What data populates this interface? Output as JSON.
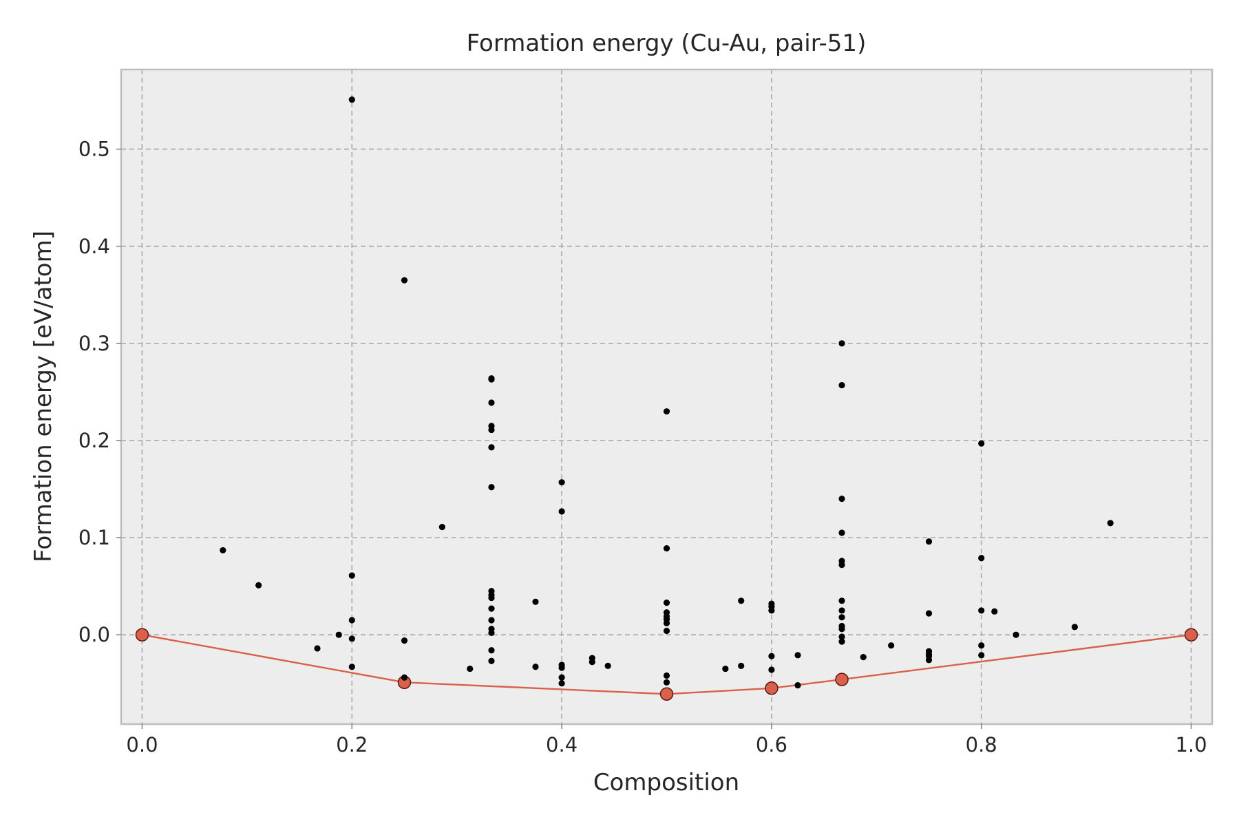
{
  "chart_data": {
    "type": "scatter",
    "title": "Formation energy (Cu-Au, pair-51)",
    "xlabel": "Composition",
    "ylabel": "Formation energy [eV/atom]",
    "xlim": [
      -0.02,
      1.02
    ],
    "ylim": [
      -0.092,
      0.582
    ],
    "xticks": [
      0.0,
      0.2,
      0.4,
      0.6,
      0.8,
      1.0
    ],
    "xtick_labels": [
      "0.0",
      "0.2",
      "0.4",
      "0.6",
      "0.8",
      "1.0"
    ],
    "yticks": [
      0.0,
      0.1,
      0.2,
      0.3,
      0.4,
      0.5
    ],
    "ytick_labels": [
      "0.0",
      "0.1",
      "0.2",
      "0.3",
      "0.4",
      "0.5"
    ],
    "grid": true,
    "colors": {
      "hull": "#d9604a",
      "hull_edge": "#5a1a10",
      "points": "#000000",
      "background": "#ededed"
    },
    "series": [
      {
        "kind": "scatter",
        "points": [
          [
            0.077,
            0.087
          ],
          [
            0.111,
            0.051
          ],
          [
            0.167,
            -0.014
          ],
          [
            0.1875,
            0.0
          ],
          [
            0.2,
            0.551
          ],
          [
            0.2,
            0.061
          ],
          [
            0.2,
            0.015
          ],
          [
            0.2,
            -0.004
          ],
          [
            0.2,
            -0.033
          ],
          [
            0.25,
            0.365
          ],
          [
            0.25,
            -0.006
          ],
          [
            0.25,
            -0.044
          ],
          [
            0.286,
            0.111
          ],
          [
            0.3125,
            -0.035
          ],
          [
            0.333,
            0.264
          ],
          [
            0.333,
            0.263
          ],
          [
            0.333,
            0.239
          ],
          [
            0.333,
            0.215
          ],
          [
            0.333,
            0.211
          ],
          [
            0.333,
            0.193
          ],
          [
            0.333,
            0.152
          ],
          [
            0.333,
            0.045
          ],
          [
            0.333,
            0.041
          ],
          [
            0.333,
            0.038
          ],
          [
            0.333,
            0.027
          ],
          [
            0.333,
            0.015
          ],
          [
            0.333,
            0.006
          ],
          [
            0.333,
            0.002
          ],
          [
            0.333,
            -0.016
          ],
          [
            0.333,
            -0.027
          ],
          [
            0.375,
            0.034
          ],
          [
            0.375,
            -0.033
          ],
          [
            0.4,
            0.157
          ],
          [
            0.4,
            0.127
          ],
          [
            0.4,
            -0.031
          ],
          [
            0.4,
            -0.034
          ],
          [
            0.4,
            -0.044
          ],
          [
            0.4,
            -0.05
          ],
          [
            0.429,
            -0.024
          ],
          [
            0.429,
            -0.028
          ],
          [
            0.444,
            -0.032
          ],
          [
            0.5,
            0.23
          ],
          [
            0.5,
            0.089
          ],
          [
            0.5,
            0.033
          ],
          [
            0.5,
            0.023
          ],
          [
            0.5,
            0.019
          ],
          [
            0.5,
            0.016
          ],
          [
            0.5,
            0.012
          ],
          [
            0.5,
            0.004
          ],
          [
            0.5,
            -0.042
          ],
          [
            0.5,
            -0.049
          ],
          [
            0.556,
            -0.035
          ],
          [
            0.571,
            0.035
          ],
          [
            0.571,
            -0.032
          ],
          [
            0.6,
            0.032
          ],
          [
            0.6,
            0.029
          ],
          [
            0.6,
            0.025
          ],
          [
            0.6,
            -0.022
          ],
          [
            0.6,
            -0.036
          ],
          [
            0.625,
            -0.021
          ],
          [
            0.625,
            -0.052
          ],
          [
            0.667,
            0.3
          ],
          [
            0.667,
            0.257
          ],
          [
            0.667,
            0.14
          ],
          [
            0.667,
            0.105
          ],
          [
            0.667,
            0.076
          ],
          [
            0.667,
            0.072
          ],
          [
            0.667,
            0.035
          ],
          [
            0.667,
            0.025
          ],
          [
            0.667,
            0.018
          ],
          [
            0.667,
            0.009
          ],
          [
            0.667,
            0.006
          ],
          [
            0.667,
            -0.002
          ],
          [
            0.667,
            -0.007
          ],
          [
            0.6875,
            -0.023
          ],
          [
            0.714,
            -0.011
          ],
          [
            0.75,
            0.096
          ],
          [
            0.75,
            0.022
          ],
          [
            0.75,
            -0.017
          ],
          [
            0.75,
            -0.02
          ],
          [
            0.75,
            -0.022
          ],
          [
            0.75,
            -0.026
          ],
          [
            0.8,
            0.197
          ],
          [
            0.8,
            0.079
          ],
          [
            0.8,
            0.025
          ],
          [
            0.8,
            -0.011
          ],
          [
            0.8,
            -0.021
          ],
          [
            0.8125,
            0.024
          ],
          [
            0.833,
            0.0
          ],
          [
            0.889,
            0.008
          ],
          [
            0.923,
            0.115
          ]
        ]
      },
      {
        "kind": "hull",
        "points": [
          [
            0.0,
            0.0
          ],
          [
            0.25,
            -0.049
          ],
          [
            0.5,
            -0.061
          ],
          [
            0.6,
            -0.055
          ],
          [
            0.667,
            -0.046
          ],
          [
            1.0,
            0.0
          ]
        ]
      }
    ]
  }
}
